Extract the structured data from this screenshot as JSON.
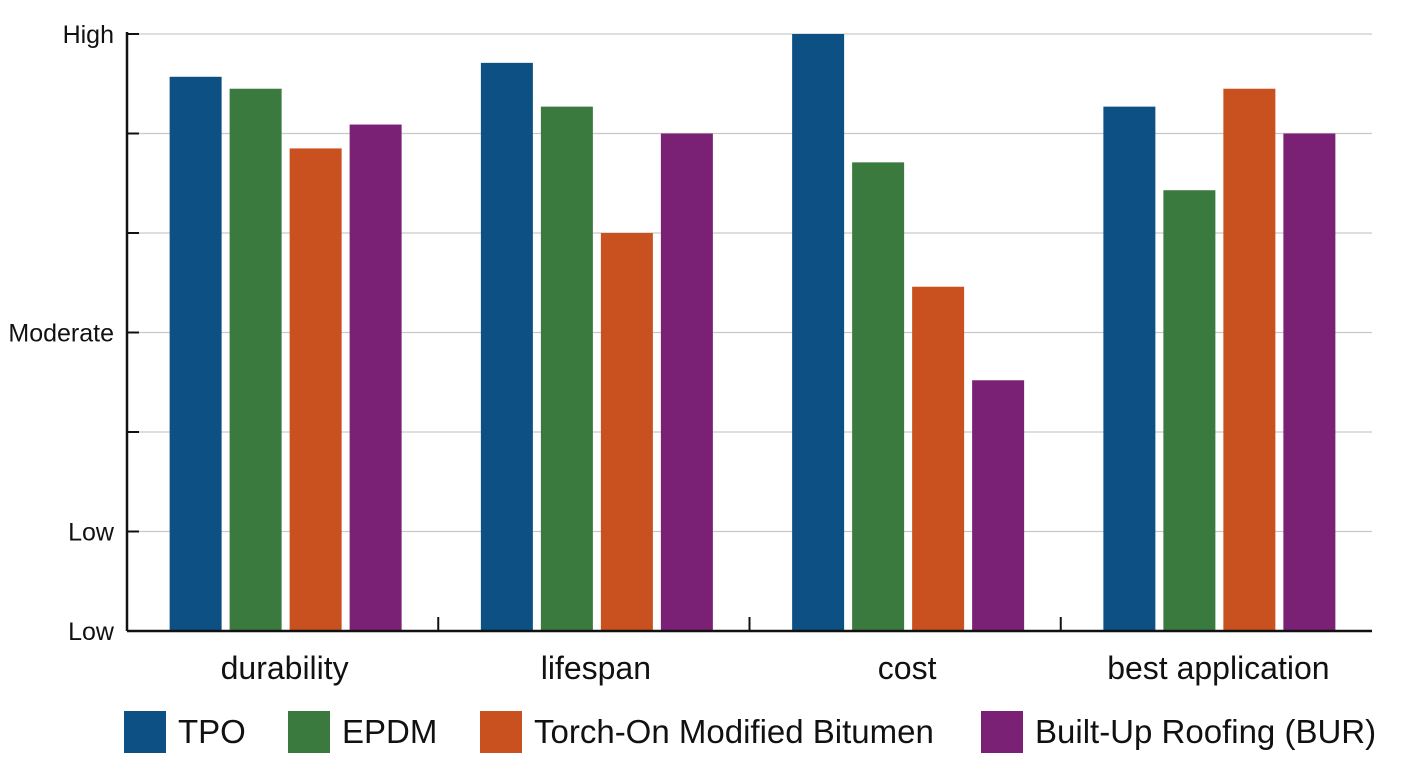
{
  "chart_data": {
    "type": "bar",
    "categories": [
      "durability",
      "lifespan",
      "cost",
      "best application"
    ],
    "y_tick_labels": [
      {
        "value": 0,
        "label": "Low"
      },
      {
        "value": 1,
        "label": "Low"
      },
      {
        "value": 3,
        "label": "Moderate"
      },
      {
        "value": 6,
        "label": "High"
      }
    ],
    "ylim": [
      0,
      6
    ],
    "y_minor_ticks": [
      2,
      4,
      5
    ],
    "grid": true,
    "legend_position": "bottom",
    "series": [
      {
        "name": "TPO",
        "color": "#0d5084",
        "values": [
          5.57,
          5.71,
          6.0,
          5.27
        ]
      },
      {
        "name": "EPDM",
        "color": "#3a7a3f",
        "values": [
          5.45,
          5.27,
          4.71,
          4.43
        ]
      },
      {
        "name": "Torch-On Modified Bitumen",
        "color": "#c8511f",
        "values": [
          4.85,
          4.0,
          3.46,
          5.45
        ]
      },
      {
        "name": "Built-Up Roofing (BUR)",
        "color": "#7b2175",
        "values": [
          5.09,
          5.0,
          2.52,
          5.0
        ]
      }
    ]
  }
}
